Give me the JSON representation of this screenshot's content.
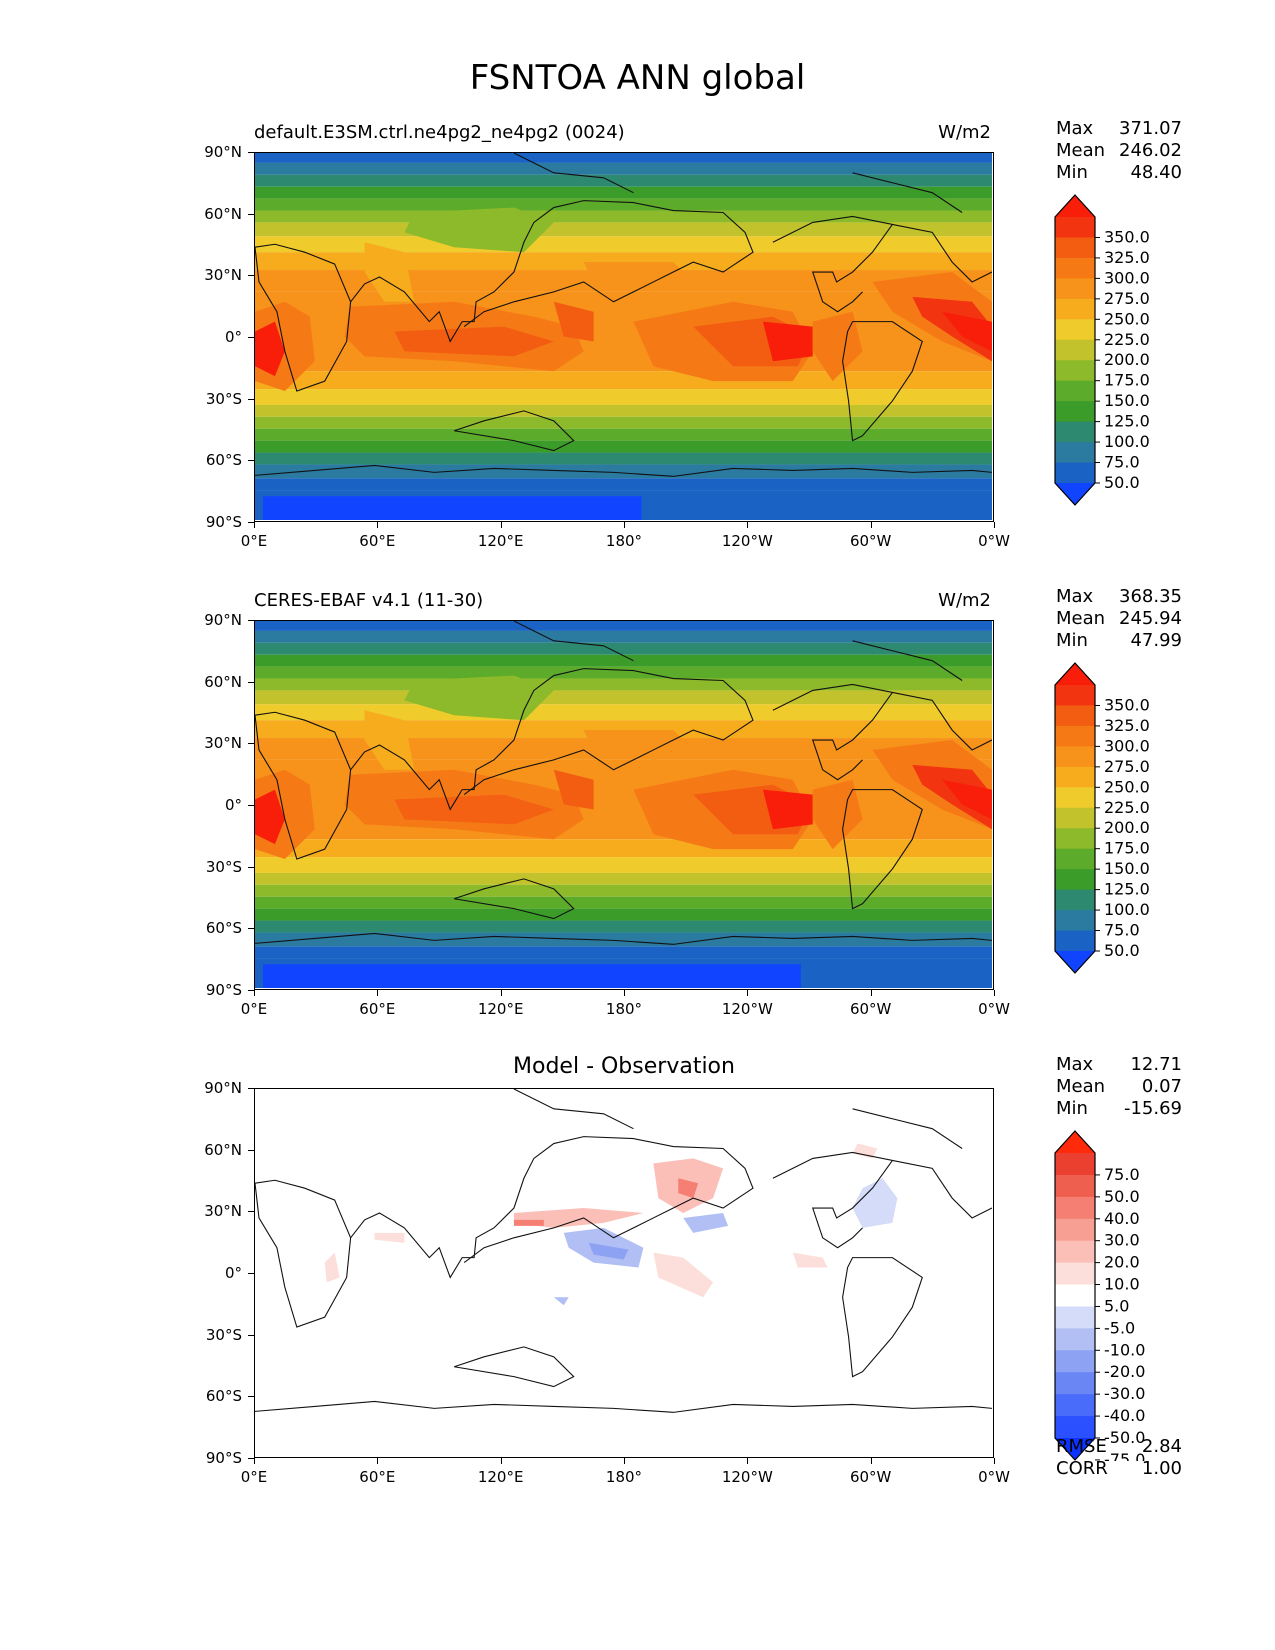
{
  "figure": {
    "title": "FSNTOA ANN global"
  },
  "panels": [
    {
      "id": "model",
      "title": "default.E3SM.ctrl.ne4pg2_ne4pg2 (0024)",
      "units": "W/m2",
      "stats": [
        {
          "label": "Max",
          "value": "371.07"
        },
        {
          "label": "Mean",
          "value": "246.02"
        },
        {
          "label": "Min",
          "value": "48.40"
        }
      ],
      "colorbar_ticks": [
        "350.0",
        "325.0",
        "300.0",
        "275.0",
        "250.0",
        "225.0",
        "200.0",
        "175.0",
        "150.0",
        "125.0",
        "100.0",
        "75.0",
        "50.0"
      ]
    },
    {
      "id": "obs",
      "title": "CERES-EBAF v4.1 (11-30)",
      "units": "W/m2",
      "stats": [
        {
          "label": "Max",
          "value": "368.35"
        },
        {
          "label": "Mean",
          "value": "245.94"
        },
        {
          "label": "Min",
          "value": "47.99"
        }
      ],
      "colorbar_ticks": [
        "350.0",
        "325.0",
        "300.0",
        "275.0",
        "250.0",
        "225.0",
        "200.0",
        "175.0",
        "150.0",
        "125.0",
        "100.0",
        "75.0",
        "50.0"
      ]
    },
    {
      "id": "diff",
      "title": "Model - Observation",
      "stats": [
        {
          "label": "Max",
          "value": "12.71"
        },
        {
          "label": "Mean",
          "value": "0.07"
        },
        {
          "label": "Min",
          "value": "-15.69"
        }
      ],
      "colorbar_ticks": [
        "75.0",
        "50.0",
        "40.0",
        "30.0",
        "20.0",
        "10.0",
        "5.0",
        "-5.0",
        "-10.0",
        "-20.0",
        "-30.0",
        "-40.0",
        "-50.0",
        "-75.0"
      ],
      "metrics": [
        {
          "label": "RMSE",
          "value": "2.84"
        },
        {
          "label": "CORR",
          "value": "1.00"
        }
      ]
    }
  ],
  "axes": {
    "lat_ticks": [
      "90°N",
      "60°N",
      "30°N",
      "0°",
      "30°S",
      "60°S",
      "90°S"
    ],
    "lon_ticks": [
      "0°E",
      "60°E",
      "120°E",
      "180°",
      "120°W",
      "60°W",
      "0°W"
    ]
  },
  "colormaps": {
    "field": [
      "#1144ff",
      "#1a63c4",
      "#2b7aa0",
      "#2d8a70",
      "#3b9c2a",
      "#5cab2a",
      "#8cba2a",
      "#c2c32c",
      "#efcb2c",
      "#f6ac1d",
      "#f7921a",
      "#f57a16",
      "#f35d12",
      "#f23410",
      "#f81e0a"
    ],
    "diff": [
      "#0a33ff",
      "#2a50ff",
      "#4a6cfb",
      "#6a86f5",
      "#8ea2f3",
      "#b1bff5",
      "#d4dcf9",
      "#ffffff",
      "#fcdedb",
      "#fbbfb8",
      "#f89f94",
      "#f47f72",
      "#ef5f50",
      "#eb3f30",
      "#ff2a0a"
    ]
  }
}
